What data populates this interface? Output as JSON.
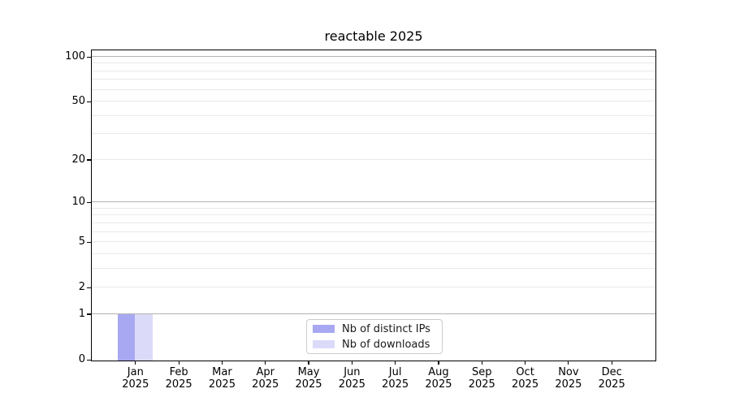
{
  "chart_data": {
    "type": "bar",
    "title": "reactable 2025",
    "categories": [
      "Jan 2025",
      "Feb 2025",
      "Mar 2025",
      "Apr 2025",
      "May 2025",
      "Jun 2025",
      "Jul 2025",
      "Aug 2025",
      "Sep 2025",
      "Oct 2025",
      "Nov 2025",
      "Dec 2025"
    ],
    "series": [
      {
        "name": "Nb of distinct IPs",
        "color": "#a8a8f2",
        "values": [
          1,
          0,
          0,
          0,
          0,
          0,
          0,
          0,
          0,
          0,
          0,
          0
        ]
      },
      {
        "name": "Nb of downloads",
        "color": "#dbdbf9",
        "values": [
          1,
          0,
          0,
          0,
          0,
          0,
          0,
          0,
          0,
          0,
          0,
          0
        ]
      }
    ],
    "xlabel": "",
    "ylabel": "",
    "ylim": [
      0,
      100
    ],
    "yaxis": {
      "scale": "log1p",
      "tick_values": [
        0,
        1,
        2,
        5,
        10,
        20,
        50,
        100
      ],
      "tick_labels": [
        "0",
        "1",
        "2",
        "5",
        "10",
        "20",
        "50",
        "100"
      ],
      "major_gridlines": [
        1,
        10,
        100
      ],
      "minor_gridlines": [
        2,
        3,
        4,
        5,
        6,
        7,
        8,
        9,
        20,
        30,
        40,
        50,
        60,
        70,
        80,
        90
      ]
    },
    "grid": "on",
    "legend_position": "bottom-center",
    "colors": {
      "major_grid": "#b2b2b2",
      "minor_grid": "#e9e9e9",
      "spine": "#000000",
      "background": "#ffffff"
    }
  }
}
